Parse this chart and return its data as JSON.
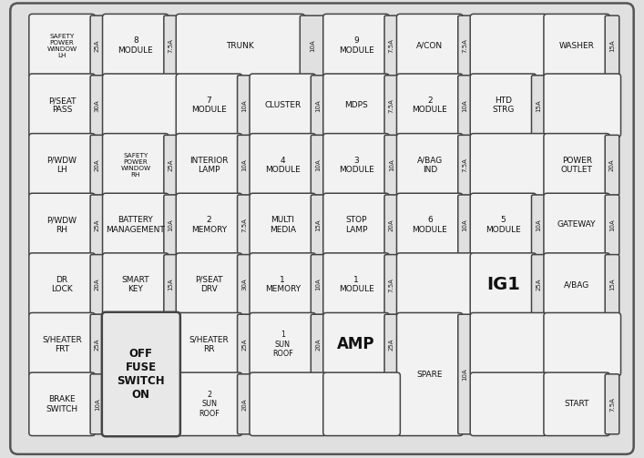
{
  "bg_color": "#e0e0e0",
  "box_fill": "#f2f2f2",
  "box_edge": "#444444",
  "amp_fill": "#e0e0e0",
  "fuse_switch_fill": "#e8e8e8",
  "figsize": [
    7.07,
    5.03
  ],
  "dpi": 100,
  "fuses": [
    {
      "label": "SAFETY\nPOWER\nWINDOW\nLH",
      "amp": "25A",
      "col": 0,
      "row": 0
    },
    {
      "label": "8\nMODULE",
      "amp": "7.5A",
      "col": 1,
      "row": 0
    },
    {
      "label": "TRUNK",
      "amp": "10A",
      "col": 2,
      "row": 0,
      "colspan": 2
    },
    {
      "label": "9\nMODULE",
      "amp": "7.5A",
      "col": 4,
      "row": 0
    },
    {
      "label": "A/CON",
      "amp": "7.5A",
      "col": 5,
      "row": 0
    },
    {
      "label": "",
      "amp": "",
      "col": 6,
      "row": 0
    },
    {
      "label": "WASHER",
      "amp": "15A",
      "col": 7,
      "row": 0
    },
    {
      "label": "P/SEAT\nPASS",
      "amp": "30A",
      "col": 0,
      "row": 1
    },
    {
      "label": "",
      "amp": "",
      "col": 1,
      "row": 1
    },
    {
      "label": "7\nMODULE",
      "amp": "10A",
      "col": 2,
      "row": 1
    },
    {
      "label": "CLUSTER",
      "amp": "10A",
      "col": 3,
      "row": 1
    },
    {
      "label": "MDPS",
      "amp": "7.5A",
      "col": 4,
      "row": 1
    },
    {
      "label": "2\nMODULE",
      "amp": "10A",
      "col": 5,
      "row": 1
    },
    {
      "label": "HTD\nSTRG",
      "amp": "15A",
      "col": 6,
      "row": 1
    },
    {
      "label": "",
      "amp": "",
      "col": 7,
      "row": 1
    },
    {
      "label": "P/WDW\nLH",
      "amp": "20A",
      "col": 0,
      "row": 2
    },
    {
      "label": "SAFETY\nPOWER\nWINDOW\nRH",
      "amp": "25A",
      "col": 1,
      "row": 2
    },
    {
      "label": "INTERIOR\nLAMP",
      "amp": "10A",
      "col": 2,
      "row": 2
    },
    {
      "label": "4\nMODULE",
      "amp": "10A",
      "col": 3,
      "row": 2
    },
    {
      "label": "3\nMODULE",
      "amp": "10A",
      "col": 4,
      "row": 2
    },
    {
      "label": "A/BAG\nIND",
      "amp": "7.5A",
      "col": 5,
      "row": 2
    },
    {
      "label": "",
      "amp": "",
      "col": 6,
      "row": 2
    },
    {
      "label": "POWER\nOUTLET",
      "amp": "20A",
      "col": 7,
      "row": 2
    },
    {
      "label": "P/WDW\nRH",
      "amp": "25A",
      "col": 0,
      "row": 3
    },
    {
      "label": "BATTERY\nMANAGEMENT",
      "amp": "10A",
      "col": 1,
      "row": 3
    },
    {
      "label": "2\nMEMORY",
      "amp": "7.5A",
      "col": 2,
      "row": 3
    },
    {
      "label": "MULTI\nMEDIA",
      "amp": "15A",
      "col": 3,
      "row": 3
    },
    {
      "label": "STOP\nLAMP",
      "amp": "20A",
      "col": 4,
      "row": 3
    },
    {
      "label": "6\nMODULE",
      "amp": "10A",
      "col": 5,
      "row": 3
    },
    {
      "label": "5\nMODULE",
      "amp": "10A",
      "col": 6,
      "row": 3
    },
    {
      "label": "GATEWAY",
      "amp": "10A",
      "col": 7,
      "row": 3
    },
    {
      "label": "DR\nLOCK",
      "amp": "20A",
      "col": 0,
      "row": 4
    },
    {
      "label": "SMART\nKEY",
      "amp": "15A",
      "col": 1,
      "row": 4
    },
    {
      "label": "P/SEAT\nDRV",
      "amp": "30A",
      "col": 2,
      "row": 4
    },
    {
      "label": "1\nMEMORY",
      "amp": "10A",
      "col": 3,
      "row": 4
    },
    {
      "label": "1\nMODULE",
      "amp": "7.5A",
      "col": 4,
      "row": 4
    },
    {
      "label": "",
      "amp": "",
      "col": 5,
      "row": 4
    },
    {
      "label": "IG1",
      "amp": "25A",
      "col": 6,
      "row": 4,
      "bold": true,
      "fontsize": 14
    },
    {
      "label": "A/BAG",
      "amp": "15A",
      "col": 7,
      "row": 4
    },
    {
      "label": "S/HEATER\nFRT",
      "amp": "25A",
      "col": 0,
      "row": 5
    },
    {
      "label": "S/HEATER\nRR",
      "amp": "25A",
      "col": 2,
      "row": 5
    },
    {
      "label": "1\nSUN\nROOF",
      "amp": "20A",
      "col": 3,
      "row": 5
    },
    {
      "label": "AMP",
      "amp": "25A",
      "col": 4,
      "row": 5,
      "bold": true,
      "fontsize": 12
    },
    {
      "label": "SPARE",
      "amp": "10A",
      "col": 5,
      "row": 5,
      "rowspan": 2
    },
    {
      "label": "",
      "amp": "",
      "col": 6,
      "row": 5
    },
    {
      "label": "",
      "amp": "",
      "col": 7,
      "row": 5
    },
    {
      "label": "BRAKE\nSWITCH",
      "amp": "10A",
      "col": 0,
      "row": 6
    },
    {
      "label": "2\nSUN\nROOF",
      "amp": "20A",
      "col": 2,
      "row": 6
    },
    {
      "label": "",
      "amp": "",
      "col": 3,
      "row": 6
    },
    {
      "label": "",
      "amp": "",
      "col": 4,
      "row": 6
    },
    {
      "label": "",
      "amp": "",
      "col": 6,
      "row": 6
    },
    {
      "label": "START",
      "amp": "7.5A",
      "col": 7,
      "row": 6
    }
  ],
  "fuse_switch": {
    "col": 1,
    "row": 5,
    "colspan": 1,
    "rowspan": 2,
    "label": "OFF\nFUSE\nSWITCH\nON"
  },
  "n_cols": 8,
  "n_rows": 7
}
